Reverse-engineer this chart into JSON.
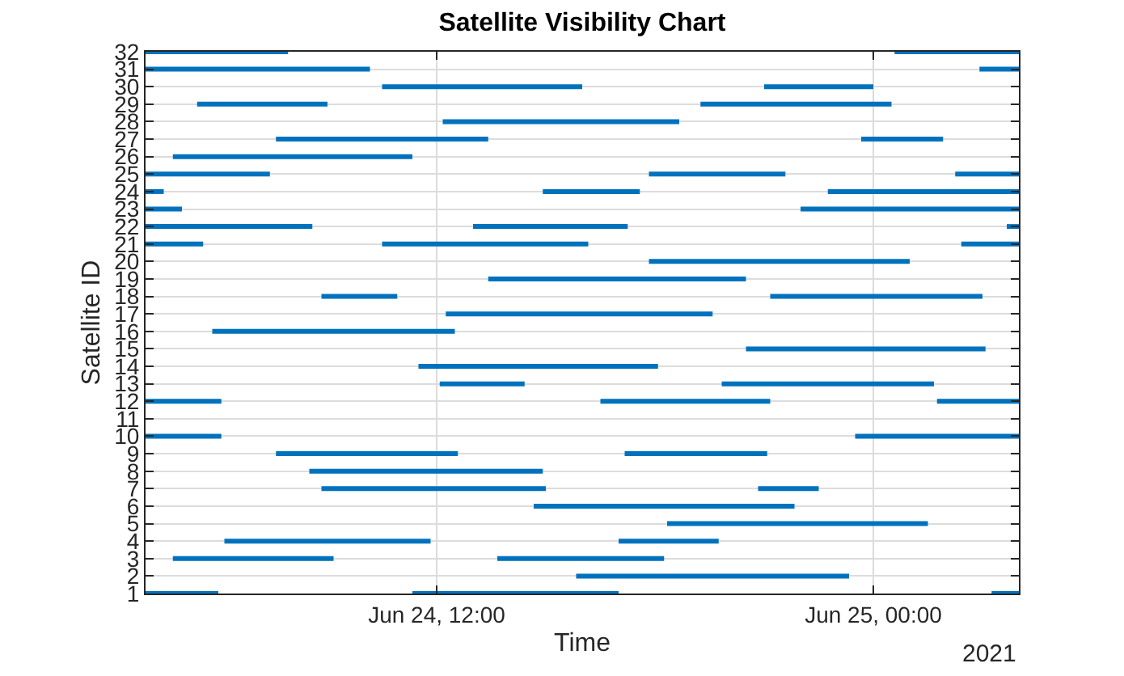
{
  "chart_data": {
    "type": "line",
    "title": "Satellite Visibility Chart",
    "xlabel": "Time",
    "ylabel": "Satellite ID",
    "annotations": [
      "2021"
    ],
    "xlim": [
      "2021-06-24T04:00",
      "2021-06-25T04:00"
    ],
    "xticks": [
      {
        "value": "2021-06-24T12:00",
        "label": "Jun 24, 12:00"
      },
      {
        "value": "2021-06-25T00:00",
        "label": "Jun 25, 00:00"
      }
    ],
    "ylim": [
      1,
      32
    ],
    "yticks": [
      1,
      2,
      3,
      4,
      5,
      6,
      7,
      8,
      9,
      10,
      11,
      12,
      13,
      14,
      15,
      16,
      17,
      18,
      19,
      20,
      21,
      22,
      23,
      24,
      25,
      26,
      27,
      28,
      29,
      30,
      31,
      32
    ],
    "grid": true,
    "marker": "none",
    "line_style": "solid",
    "series": [
      {
        "color": "#0072bd",
        "x": [
          "2021-06-24T04:00",
          "2021-06-24T06:00",
          null,
          "2021-06-24T11:20",
          "2021-06-24T17:00",
          null,
          "2021-06-25T03:15",
          "2021-06-25T04:00"
        ],
        "values": [
          1,
          1,
          null,
          1,
          1,
          null,
          1,
          1
        ]
      },
      {
        "color": "#0072bd",
        "x": [
          "2021-06-24T15:50",
          "2021-06-24T23:20"
        ],
        "values": [
          2,
          2
        ]
      },
      {
        "color": "#0072bd",
        "x": [
          "2021-06-24T04:45",
          "2021-06-24T09:10",
          null,
          "2021-06-24T13:40",
          "2021-06-24T18:15"
        ],
        "values": [
          3,
          3,
          null,
          3,
          3
        ]
      },
      {
        "color": "#0072bd",
        "x": [
          "2021-06-24T06:10",
          "2021-06-24T11:50",
          null,
          "2021-06-24T17:00",
          "2021-06-24T19:45"
        ],
        "values": [
          4,
          4,
          null,
          4,
          4
        ]
      },
      {
        "color": "#0072bd",
        "x": [
          "2021-06-24T18:20",
          "2021-06-25T01:30"
        ],
        "values": [
          5,
          5
        ]
      },
      {
        "color": "#0072bd",
        "x": [
          "2021-06-24T14:40",
          "2021-06-24T21:50"
        ],
        "values": [
          6,
          6
        ]
      },
      {
        "color": "#0072bd",
        "x": [
          "2021-06-24T08:50",
          "2021-06-24T15:00",
          null,
          "2021-06-24T20:50",
          "2021-06-24T22:30"
        ],
        "values": [
          7,
          7,
          null,
          7,
          7
        ]
      },
      {
        "color": "#0072bd",
        "x": [
          "2021-06-24T08:30",
          "2021-06-24T14:55"
        ],
        "values": [
          8,
          8
        ]
      },
      {
        "color": "#0072bd",
        "x": [
          "2021-06-24T07:35",
          "2021-06-24T12:35",
          null,
          "2021-06-24T17:10",
          "2021-06-24T21:05"
        ],
        "values": [
          9,
          9,
          null,
          9,
          9
        ]
      },
      {
        "color": "#0072bd",
        "x": [
          "2021-06-24T04:00",
          "2021-06-24T06:05",
          null,
          "2021-06-24T23:30",
          "2021-06-25T04:00"
        ],
        "values": [
          10,
          10,
          null,
          10,
          10
        ]
      },
      {
        "color": "#0072bd",
        "x": [
          "2021-06-24T04:00",
          "2021-06-24T06:05",
          null,
          "2021-06-24T16:30",
          "2021-06-24T21:10",
          null,
          "2021-06-25T01:45",
          "2021-06-25T04:00"
        ],
        "values": [
          12,
          12,
          null,
          12,
          12,
          null,
          12,
          12
        ]
      },
      {
        "color": "#0072bd",
        "x": [
          "2021-06-24T12:05",
          "2021-06-24T14:25",
          null,
          "2021-06-24T19:50",
          "2021-06-25T01:40"
        ],
        "values": [
          13,
          13,
          null,
          13,
          13
        ]
      },
      {
        "color": "#0072bd",
        "x": [
          "2021-06-24T11:30",
          "2021-06-24T18:05"
        ],
        "values": [
          14,
          14
        ]
      },
      {
        "color": "#0072bd",
        "x": [
          "2021-06-24T20:30",
          "2021-06-25T03:05"
        ],
        "values": [
          15,
          15
        ]
      },
      {
        "color": "#0072bd",
        "x": [
          "2021-06-24T05:50",
          "2021-06-24T12:30"
        ],
        "values": [
          16,
          16
        ]
      },
      {
        "color": "#0072bd",
        "x": [
          "2021-06-24T12:15",
          "2021-06-24T19:35"
        ],
        "values": [
          17,
          17
        ]
      },
      {
        "color": "#0072bd",
        "x": [
          "2021-06-24T08:50",
          "2021-06-24T10:55",
          null,
          "2021-06-24T21:10",
          "2021-06-25T03:00"
        ],
        "values": [
          18,
          18,
          null,
          18,
          18
        ]
      },
      {
        "color": "#0072bd",
        "x": [
          "2021-06-24T13:25",
          "2021-06-24T20:30"
        ],
        "values": [
          19,
          19
        ]
      },
      {
        "color": "#0072bd",
        "x": [
          "2021-06-24T17:50",
          "2021-06-25T01:00"
        ],
        "values": [
          20,
          20
        ]
      },
      {
        "color": "#0072bd",
        "x": [
          "2021-06-24T04:00",
          "2021-06-24T05:35",
          null,
          "2021-06-24T10:30",
          "2021-06-24T16:10",
          null,
          "2021-06-25T02:25",
          "2021-06-25T04:00"
        ],
        "values": [
          21,
          21,
          null,
          21,
          21,
          null,
          21,
          21
        ]
      },
      {
        "color": "#0072bd",
        "x": [
          "2021-06-24T04:00",
          "2021-06-24T08:35",
          null,
          "2021-06-24T13:00",
          "2021-06-24T17:15",
          null,
          "2021-06-25T03:40",
          "2021-06-25T04:00"
        ],
        "values": [
          22,
          22,
          null,
          22,
          22,
          null,
          22,
          22
        ]
      },
      {
        "color": "#0072bd",
        "x": [
          "2021-06-24T04:00",
          "2021-06-24T05:00",
          null,
          "2021-06-24T22:00",
          "2021-06-25T04:00"
        ],
        "values": [
          23,
          23,
          null,
          23,
          23
        ]
      },
      {
        "color": "#0072bd",
        "x": [
          "2021-06-24T04:00",
          "2021-06-24T04:30",
          null,
          "2021-06-24T14:55",
          "2021-06-24T17:35",
          null,
          "2021-06-24T22:45",
          "2021-06-25T04:00"
        ],
        "values": [
          24,
          24,
          null,
          24,
          24,
          null,
          24,
          24
        ]
      },
      {
        "color": "#0072bd",
        "x": [
          "2021-06-24T04:00",
          "2021-06-24T07:25",
          null,
          "2021-06-24T17:50",
          "2021-06-24T21:35",
          null,
          "2021-06-25T02:15",
          "2021-06-25T04:00"
        ],
        "values": [
          25,
          25,
          null,
          25,
          25,
          null,
          25,
          25
        ]
      },
      {
        "color": "#0072bd",
        "x": [
          "2021-06-24T04:45",
          "2021-06-24T11:20"
        ],
        "values": [
          26,
          26
        ]
      },
      {
        "color": "#0072bd",
        "x": [
          "2021-06-24T07:35",
          "2021-06-24T13:25",
          null,
          "2021-06-24T23:40",
          "2021-06-25T01:55"
        ],
        "values": [
          27,
          27,
          null,
          27,
          27
        ]
      },
      {
        "color": "#0072bd",
        "x": [
          "2021-06-24T12:10",
          "2021-06-24T18:40"
        ],
        "values": [
          28,
          28
        ]
      },
      {
        "color": "#0072bd",
        "x": [
          "2021-06-24T05:25",
          "2021-06-24T09:00",
          null,
          "2021-06-24T19:15",
          "2021-06-25T00:30"
        ],
        "values": [
          29,
          29,
          null,
          29,
          29
        ]
      },
      {
        "color": "#0072bd",
        "x": [
          "2021-06-24T10:30",
          "2021-06-24T16:00",
          null,
          "2021-06-24T21:00",
          "2021-06-25T00:00"
        ],
        "values": [
          30,
          30,
          null,
          30,
          30
        ]
      },
      {
        "color": "#0072bd",
        "x": [
          "2021-06-24T04:00",
          "2021-06-24T10:10",
          null,
          "2021-06-25T02:55",
          "2021-06-25T04:00"
        ],
        "values": [
          31,
          31,
          null,
          31,
          31
        ]
      },
      {
        "color": "#0072bd",
        "x": [
          "2021-06-24T04:00",
          "2021-06-24T07:55",
          null,
          "2021-06-25T00:35",
          "2021-06-25T04:00"
        ],
        "values": [
          32,
          32,
          null,
          32,
          32
        ]
      }
    ]
  }
}
